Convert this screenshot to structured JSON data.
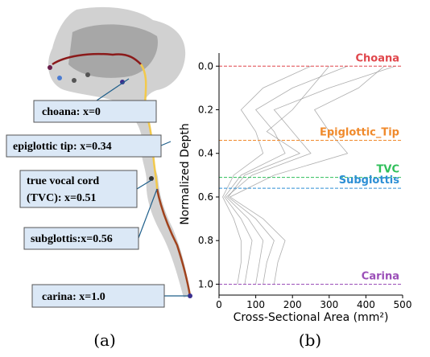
{
  "panel_a": {
    "annotations": [
      [
        "choana: x=0"
      ],
      [
        "epiglottic tip: x=0.34"
      ],
      [
        "true vocal cord",
        "(TVC): x=0.51"
      ],
      [
        "subglottis:x=0.56"
      ],
      [
        "carina: x=1.0"
      ]
    ]
  },
  "captions": [
    "(a)",
    "(b)"
  ],
  "chart_data": {
    "type": "line",
    "xlabel": "Cross-Sectional Area (mm²)",
    "ylabel": "Normalized Depth",
    "xlim": [
      0,
      500
    ],
    "xticks": [
      0,
      100,
      200,
      300,
      400,
      500
    ],
    "ylim": [
      -0.06,
      1.05
    ],
    "y_inverted": true,
    "yticks": [
      {
        "value": 0,
        "label": "0.0"
      },
      {
        "value": 0.2,
        "label": "0.2"
      },
      {
        "value": 0.4,
        "label": "0.4"
      },
      {
        "value": 0.6,
        "label": "0.6"
      },
      {
        "value": 0.8,
        "label": "0.8"
      },
      {
        "value": 1,
        "label": "1.0"
      }
    ],
    "y": [
      0,
      0.1,
      0.2,
      0.3,
      0.4,
      0.5,
      0.6,
      0.7,
      0.8,
      0.9,
      1.0
    ],
    "series": [
      {
        "color": "#9a9a9a",
        "x": [
          480,
          300,
          150,
          200,
          250,
          90,
          20,
          80,
          120,
          110,
          100
        ]
      },
      {
        "color": "#9a9a9a",
        "x": [
          350,
          200,
          100,
          150,
          180,
          60,
          15,
          60,
          90,
          80,
          70
        ]
      },
      {
        "color": "#9a9a9a",
        "x": [
          250,
          120,
          60,
          100,
          120,
          40,
          10,
          40,
          60,
          60,
          50
        ]
      },
      {
        "color": "#9a9a9a",
        "x": [
          450,
          380,
          260,
          300,
          350,
          150,
          30,
          120,
          180,
          160,
          150
        ]
      },
      {
        "color": "#9a9a9a",
        "x": [
          300,
          250,
          200,
          130,
          220,
          70,
          25,
          100,
          150,
          130,
          120
        ]
      }
    ],
    "reference_lines": [
      {
        "value": 0,
        "label": "Choana",
        "color": "#e0474c"
      },
      {
        "value": 0.34,
        "label": "Epiglottic_Tip",
        "color": "#f08a2c"
      },
      {
        "value": 0.51,
        "label": "TVC",
        "color": "#2fbf5a"
      },
      {
        "value": 0.56,
        "label": "Subglottis",
        "color": "#2d8fd5"
      },
      {
        "value": 1.0,
        "label": "Carina",
        "color": "#9b4fb8"
      }
    ]
  }
}
